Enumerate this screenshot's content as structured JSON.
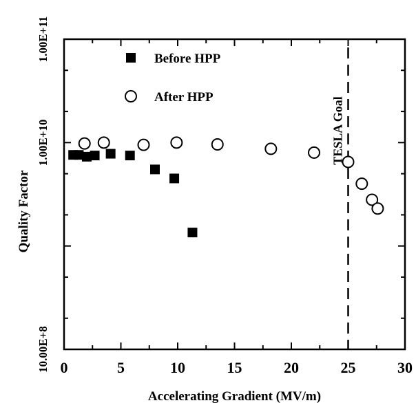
{
  "chart_data": {
    "type": "scatter",
    "xlabel": "Accelerating Gradient (MV/m)",
    "ylabel": "Quality Factor",
    "xlim": [
      0,
      30
    ],
    "ylim": [
      100000000.0,
      100000000000.0
    ],
    "yscale": "log",
    "x_ticks": [
      "0",
      "5",
      "10",
      "15",
      "20",
      "25",
      "30"
    ],
    "y_tick_labels": [
      "10.00E+8",
      "1.00E+10",
      "1.00E+11"
    ],
    "legend_position": "top-left",
    "series": [
      {
        "name": "Before HPP",
        "marker": "filled-square",
        "points": [
          [
            0.8,
            7600000000.0
          ],
          [
            1.3,
            7600000000.0
          ],
          [
            2.0,
            7300000000.0
          ],
          [
            2.7,
            7500000000.0
          ],
          [
            4.1,
            7800000000.0
          ],
          [
            5.8,
            7500000000.0
          ],
          [
            8.0,
            5500000000.0
          ],
          [
            9.7,
            4500000000.0
          ],
          [
            11.3,
            1350000000.0
          ]
        ]
      },
      {
        "name": "After HPP",
        "marker": "open-circle",
        "points": [
          [
            1.8,
            9800000000.0
          ],
          [
            3.5,
            10000000000.0
          ],
          [
            7.0,
            9500000000.0
          ],
          [
            9.9,
            10000000000.0
          ],
          [
            13.5,
            9600000000.0
          ],
          [
            18.2,
            8700000000.0
          ],
          [
            22.0,
            8000000000.0
          ],
          [
            25.0,
            6500000000.0
          ],
          [
            26.2,
            4000000000.0
          ],
          [
            27.1,
            2800000000.0
          ],
          [
            27.6,
            2300000000.0
          ]
        ]
      }
    ],
    "annotations": [
      {
        "text": "TESLA Goal",
        "x": 25,
        "style": "dashed-vertical-line"
      }
    ]
  }
}
